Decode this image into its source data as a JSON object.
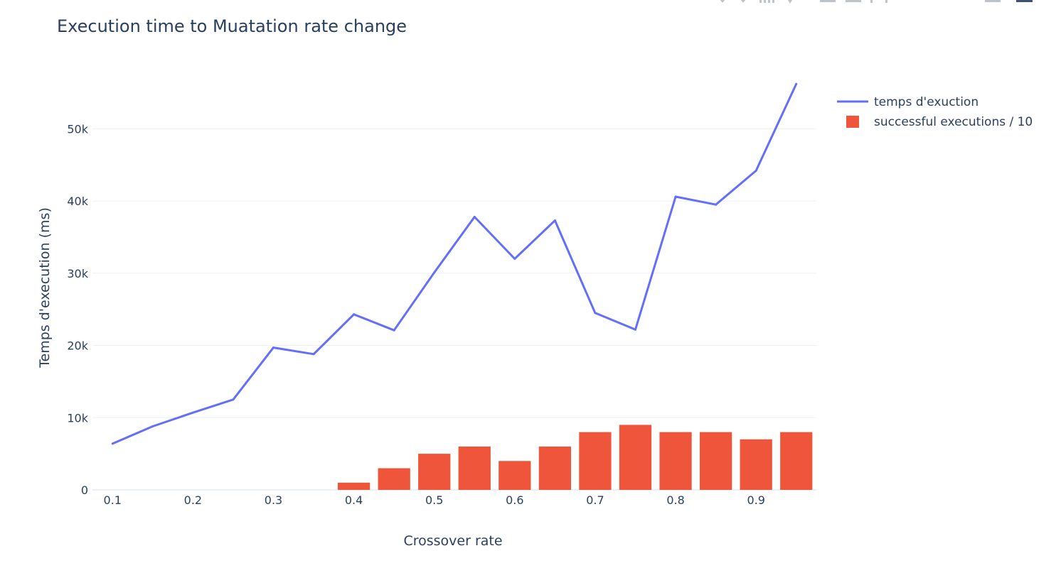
{
  "colors": {
    "line": "#636efa",
    "bar": "#ef553b",
    "text": "#2a3f5f",
    "grid": "#ebf0f8",
    "modebar": "#bdc3c9",
    "modebar_active": "#3f4f75"
  },
  "chart_data": {
    "type": "bar",
    "title": "Execution time to Muatation rate change",
    "xlabel": "Crossover rate",
    "ylabel": "Temps d'execution (ms)",
    "xlim": [
      0.075,
      0.975
    ],
    "ylim": [
      0,
      58000
    ],
    "x_ticks": [
      {
        "value": 0.1,
        "label": "0.1"
      },
      {
        "value": 0.2,
        "label": "0.2"
      },
      {
        "value": 0.3,
        "label": "0.3"
      },
      {
        "value": 0.4,
        "label": "0.4"
      },
      {
        "value": 0.5,
        "label": "0.5"
      },
      {
        "value": 0.6,
        "label": "0.6"
      },
      {
        "value": 0.7,
        "label": "0.7"
      },
      {
        "value": 0.8,
        "label": "0.8"
      },
      {
        "value": 0.9,
        "label": "0.9"
      }
    ],
    "y_ticks": [
      {
        "value": 0,
        "label": "0"
      },
      {
        "value": 10000,
        "label": "10k"
      },
      {
        "value": 20000,
        "label": "20k"
      },
      {
        "value": 30000,
        "label": "30k"
      },
      {
        "value": 40000,
        "label": "40k"
      },
      {
        "value": 50000,
        "label": "50k"
      }
    ],
    "grid": true,
    "legend_position": "top-right",
    "x": [
      0.1,
      0.15,
      0.2,
      0.25,
      0.3,
      0.35,
      0.4,
      0.45,
      0.5,
      0.55,
      0.6,
      0.65,
      0.7,
      0.75,
      0.8,
      0.85,
      0.9,
      0.95
    ],
    "series": [
      {
        "name": "temps d'exuction",
        "type": "line",
        "values": [
          6400,
          8800,
          10700,
          12500,
          19700,
          18800,
          24300,
          22100,
          30100,
          37800,
          32000,
          37300,
          24500,
          22200,
          40600,
          39500,
          44200,
          56200
        ]
      },
      {
        "name": "successful executions / 10",
        "type": "bar",
        "values": [
          0,
          0,
          0,
          0,
          0,
          0,
          1000,
          3000,
          5000,
          6000,
          4000,
          6000,
          8000,
          9000,
          8000,
          8000,
          7000,
          8000
        ]
      }
    ]
  }
}
